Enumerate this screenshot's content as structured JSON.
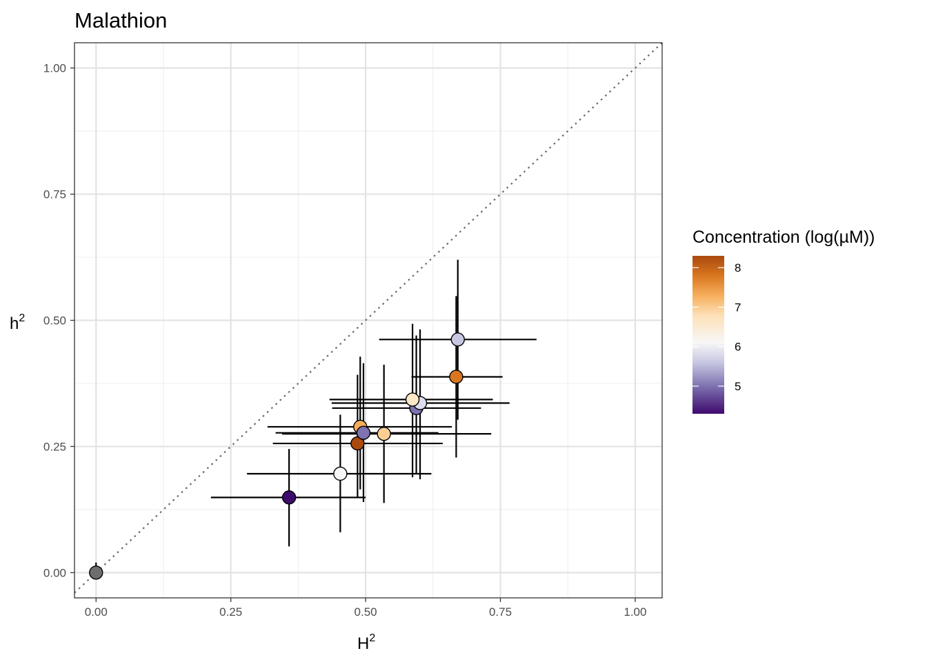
{
  "chart_data": {
    "type": "scatter",
    "title": "Malathion",
    "xlabel": "H",
    "xlabel_superscript": "2",
    "ylabel": "h",
    "ylabel_superscript": "2",
    "xlim": [
      -0.04,
      1.05
    ],
    "ylim": [
      -0.05,
      1.05
    ],
    "x_ticks": [
      0,
      0.25,
      0.5,
      0.75,
      1
    ],
    "x_tick_labels": [
      "0.00",
      "0.25",
      "0.50",
      "0.75",
      "1.00"
    ],
    "y_ticks": [
      0,
      0.25,
      0.5,
      0.75,
      1
    ],
    "y_tick_labels": [
      "0.00",
      "0.25",
      "0.50",
      "0.75",
      "1.00"
    ],
    "grid": true,
    "reference_line": {
      "type": "identity",
      "style": "dotted",
      "color": "#666666"
    },
    "legend": {
      "title": "Concentration (log(µM))",
      "position": "right",
      "range": [
        4.3,
        8.3
      ],
      "ticks": [
        5,
        6,
        7,
        8
      ],
      "tick_labels": [
        "5",
        "6",
        "7",
        "8"
      ],
      "stops": [
        {
          "value": 4.3,
          "color": "#3f0a6e"
        },
        {
          "value": 5.0,
          "color": "#7e72b0"
        },
        {
          "value": 5.6,
          "color": "#c7c7e2"
        },
        {
          "value": 6.1,
          "color": "#f7f7f7"
        },
        {
          "value": 6.8,
          "color": "#fde0b6"
        },
        {
          "value": 7.3,
          "color": "#f6ae5c"
        },
        {
          "value": 7.8,
          "color": "#d9761f"
        },
        {
          "value": 8.3,
          "color": "#a9490e"
        }
      ]
    },
    "points": [
      {
        "x": 0.0,
        "y": 0.0,
        "x_lo": 0.0,
        "x_hi": 0.0,
        "y_lo": -0.01,
        "y_hi": 0.02,
        "color": "#6e6e6e"
      },
      {
        "x": 0.358,
        "y": 0.149,
        "x_lo": 0.213,
        "x_hi": 0.5,
        "y_lo": 0.052,
        "y_hi": 0.245,
        "color": "#3f0a6e"
      },
      {
        "x": 0.453,
        "y": 0.196,
        "x_lo": 0.28,
        "x_hi": 0.622,
        "y_lo": 0.08,
        "y_hi": 0.313,
        "color": "#f7f7f7"
      },
      {
        "x": 0.485,
        "y": 0.256,
        "x_lo": 0.328,
        "x_hi": 0.643,
        "y_lo": 0.15,
        "y_hi": 0.392,
        "color": "#a9490e"
      },
      {
        "x": 0.49,
        "y": 0.289,
        "x_lo": 0.318,
        "x_hi": 0.66,
        "y_lo": 0.165,
        "y_hi": 0.428,
        "color": "#f6ae5c"
      },
      {
        "x": 0.496,
        "y": 0.277,
        "x_lo": 0.333,
        "x_hi": 0.635,
        "y_lo": 0.14,
        "y_hi": 0.415,
        "color": "#7e72b0"
      },
      {
        "x": 0.534,
        "y": 0.275,
        "x_lo": 0.345,
        "x_hi": 0.733,
        "y_lo": 0.138,
        "y_hi": 0.412,
        "color": "#fbcf94"
      },
      {
        "x": 0.594,
        "y": 0.326,
        "x_lo": 0.438,
        "x_hi": 0.714,
        "y_lo": 0.195,
        "y_hi": 0.47,
        "color": "#7e72b0"
      },
      {
        "x": 0.601,
        "y": 0.336,
        "x_lo": 0.437,
        "x_hi": 0.767,
        "y_lo": 0.185,
        "y_hi": 0.482,
        "color": "#dddded"
      },
      {
        "x": 0.587,
        "y": 0.343,
        "x_lo": 0.433,
        "x_hi": 0.736,
        "y_lo": 0.189,
        "y_hi": 0.493,
        "color": "#fde8c8"
      },
      {
        "x": 0.668,
        "y": 0.388,
        "x_lo": 0.585,
        "x_hi": 0.754,
        "y_lo": 0.228,
        "y_hi": 0.548,
        "color": "#d9761f"
      },
      {
        "x": 0.671,
        "y": 0.462,
        "x_lo": 0.525,
        "x_hi": 0.817,
        "y_lo": 0.303,
        "y_hi": 0.62,
        "color": "#c7c7e2"
      }
    ]
  }
}
